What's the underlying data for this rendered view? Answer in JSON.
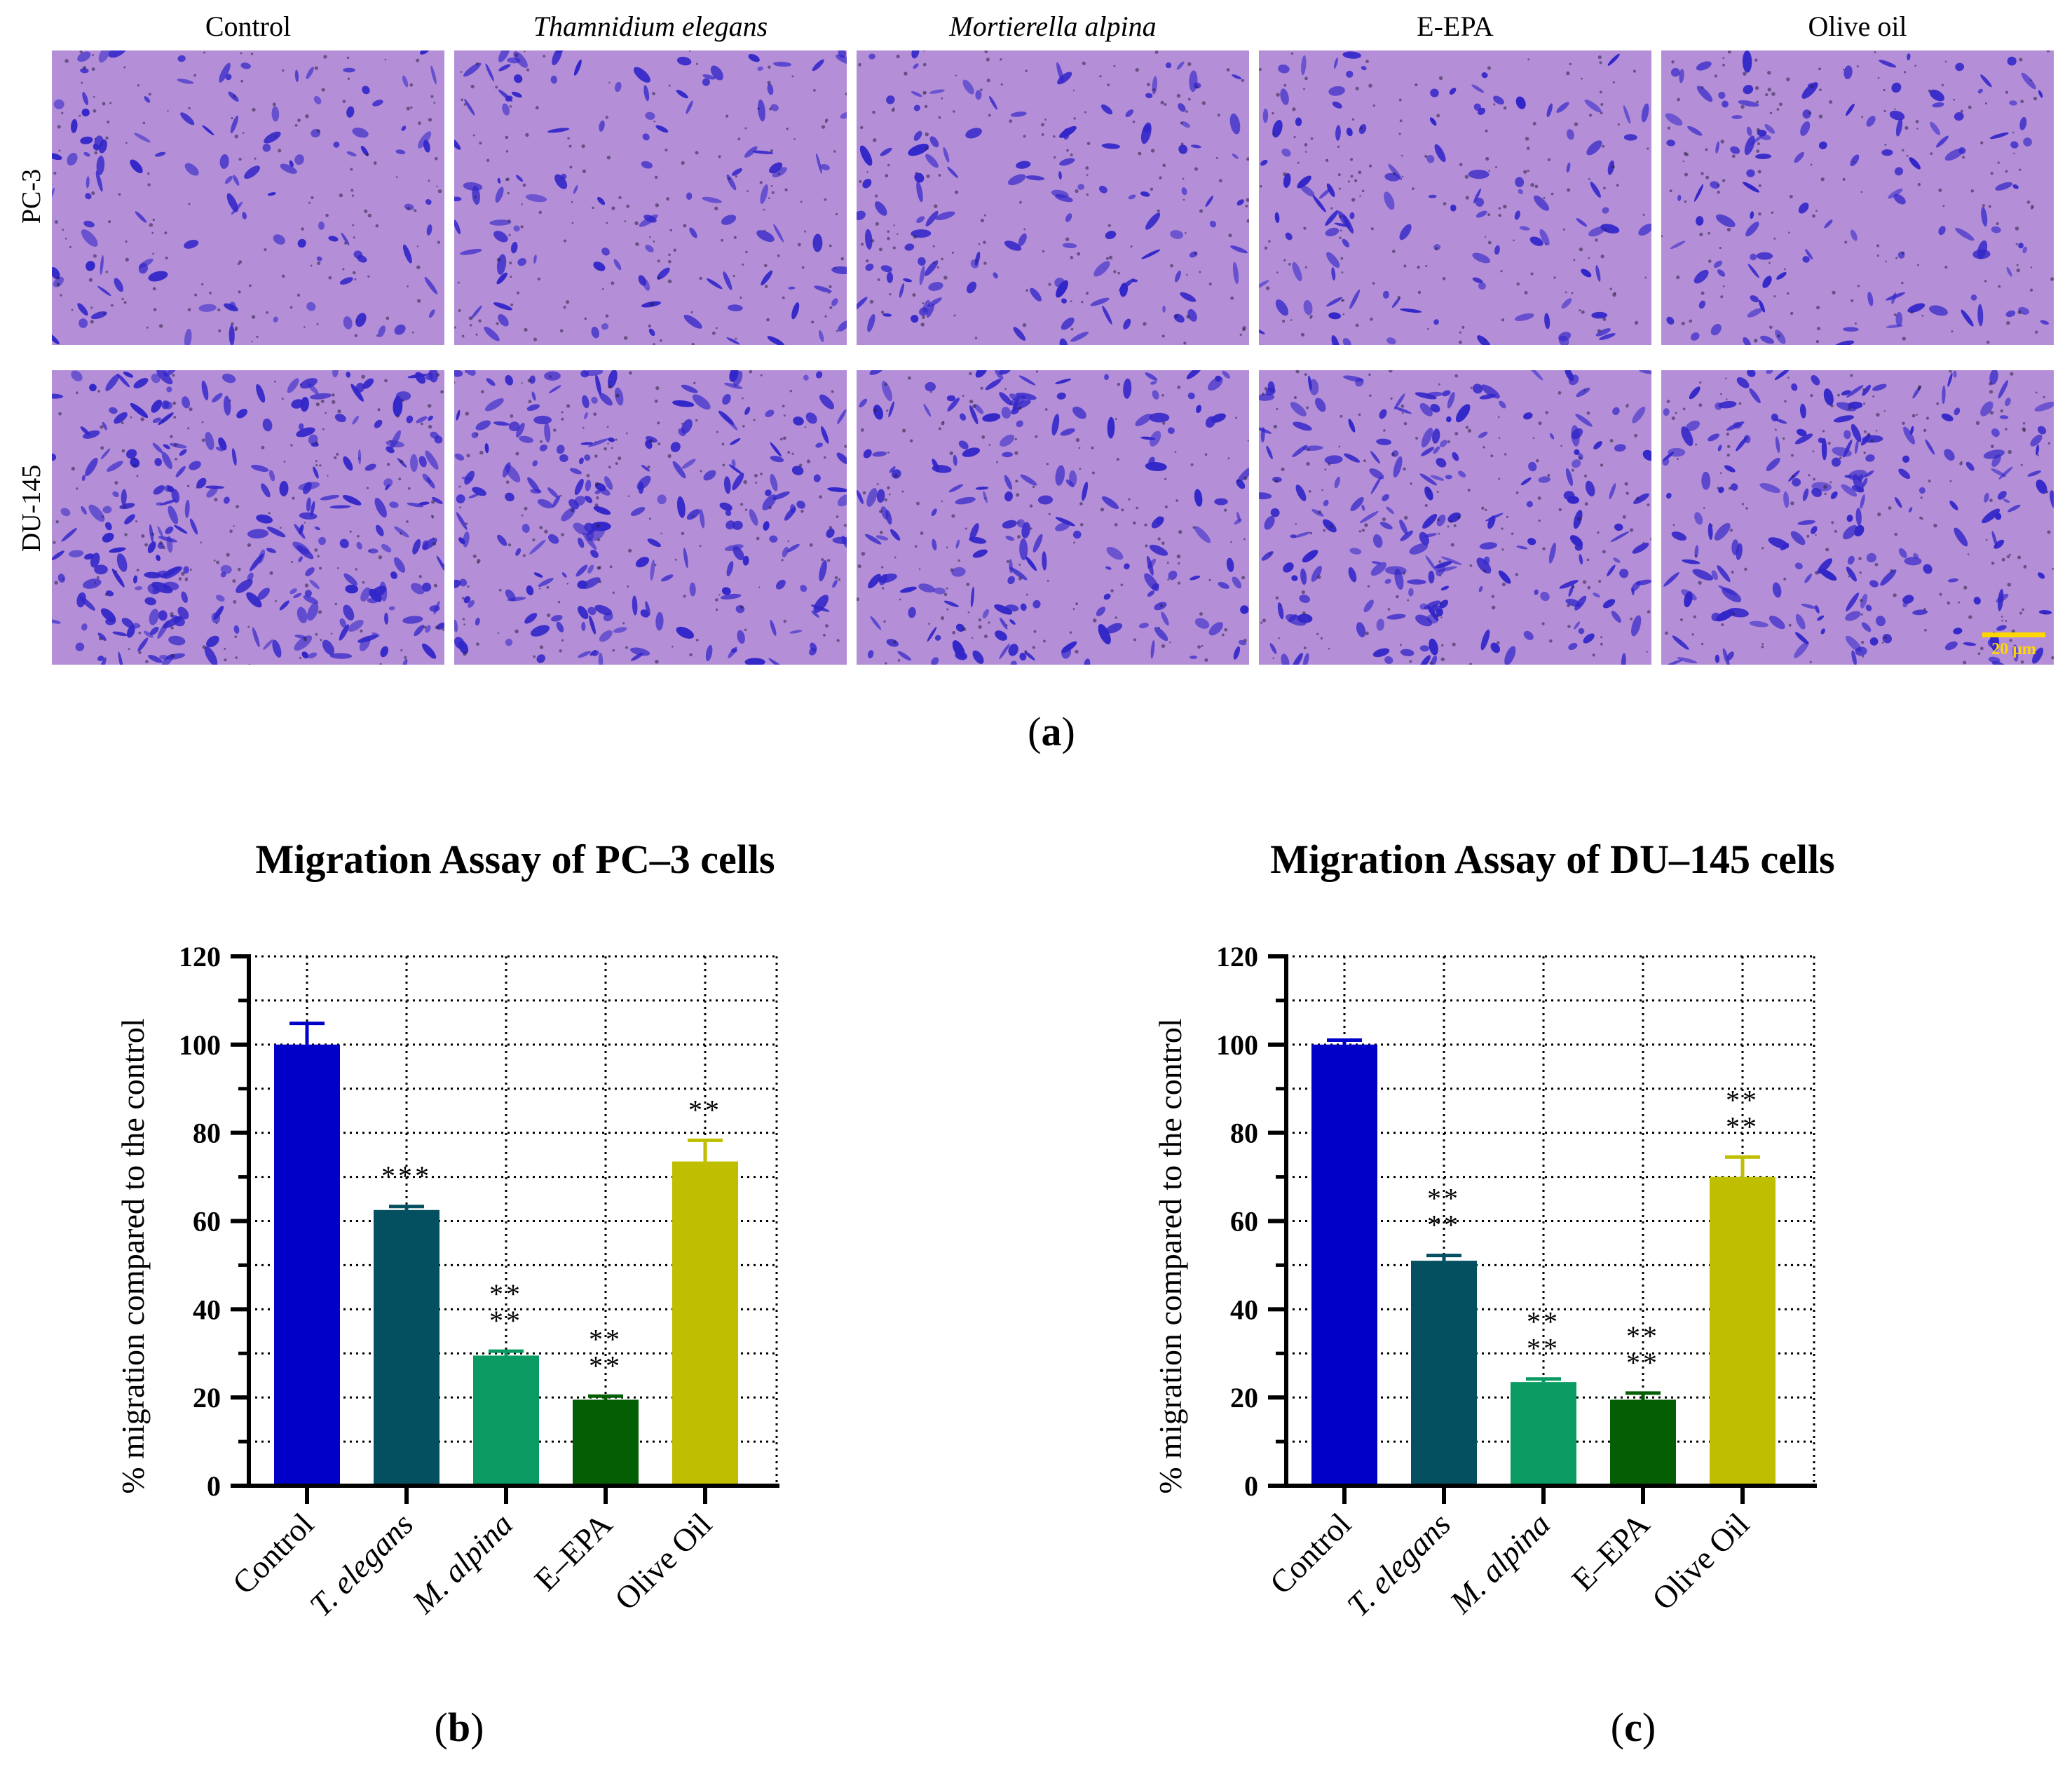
{
  "panel_a": {
    "columns": [
      "Control",
      "Thamnidium elegans",
      "Mortierella alpina",
      "E-EPA",
      "Olive oil"
    ],
    "rows": [
      "PC-3",
      "DU-145"
    ],
    "scale_bar": "20 μm",
    "label_open": "(",
    "label_letter": "a",
    "label_close": ")"
  },
  "panel_b": {
    "label_open": "(",
    "label_letter": "b",
    "label_close": ")"
  },
  "panel_c": {
    "label_open": "(",
    "label_letter": "c",
    "label_close": ")"
  },
  "colors": {
    "control": "#0000c8",
    "t_elegans": "#044f60",
    "m_alpina": "#0a9b63",
    "e_epa": "#045e04",
    "olive_oil": "#bfbe00",
    "stain_bg": "#b48fd8",
    "cell": "#3226c8"
  },
  "chart_data": [
    {
      "type": "bar",
      "title": "Migration Assay of PC–3 cells",
      "ylabel": "% migration compared to the control",
      "xlabel": "",
      "categories": [
        "Control",
        "T. elegans",
        "M. alpina",
        "E–EPA",
        "Olive Oil"
      ],
      "italic": [
        false,
        true,
        true,
        false,
        false
      ],
      "values": [
        100,
        62.5,
        29.5,
        19.5,
        73.5
      ],
      "errors": [
        4.8,
        0.8,
        1.0,
        0.8,
        4.8
      ],
      "significance": [
        [],
        [
          "***"
        ],
        [
          "**",
          "**"
        ],
        [
          "**",
          "**"
        ],
        [
          "**"
        ]
      ],
      "ylim": [
        0,
        120
      ],
      "yticks": [
        "0",
        "20",
        "40",
        "60",
        "80",
        "100",
        "120"
      ],
      "grid": true
    },
    {
      "type": "bar",
      "title": "Migration Assay of DU–145 cells",
      "ylabel": "% migration compared to the control",
      "xlabel": "",
      "categories": [
        "Control",
        "T. elegans",
        "M. alpina",
        "E–EPA",
        "Olive Oil"
      ],
      "italic": [
        false,
        true,
        true,
        false,
        false
      ],
      "values": [
        100,
        51,
        23.5,
        19.5,
        70
      ],
      "errors": [
        1.0,
        1.2,
        0.7,
        1.5,
        4.5
      ],
      "significance": [
        [],
        [
          "**",
          "**"
        ],
        [
          "**",
          "**"
        ],
        [
          "**",
          "**"
        ],
        [
          "**",
          "**"
        ]
      ],
      "ylim": [
        0,
        120
      ],
      "yticks": [
        "0",
        "20",
        "40",
        "60",
        "80",
        "100",
        "120"
      ],
      "grid": true
    }
  ]
}
